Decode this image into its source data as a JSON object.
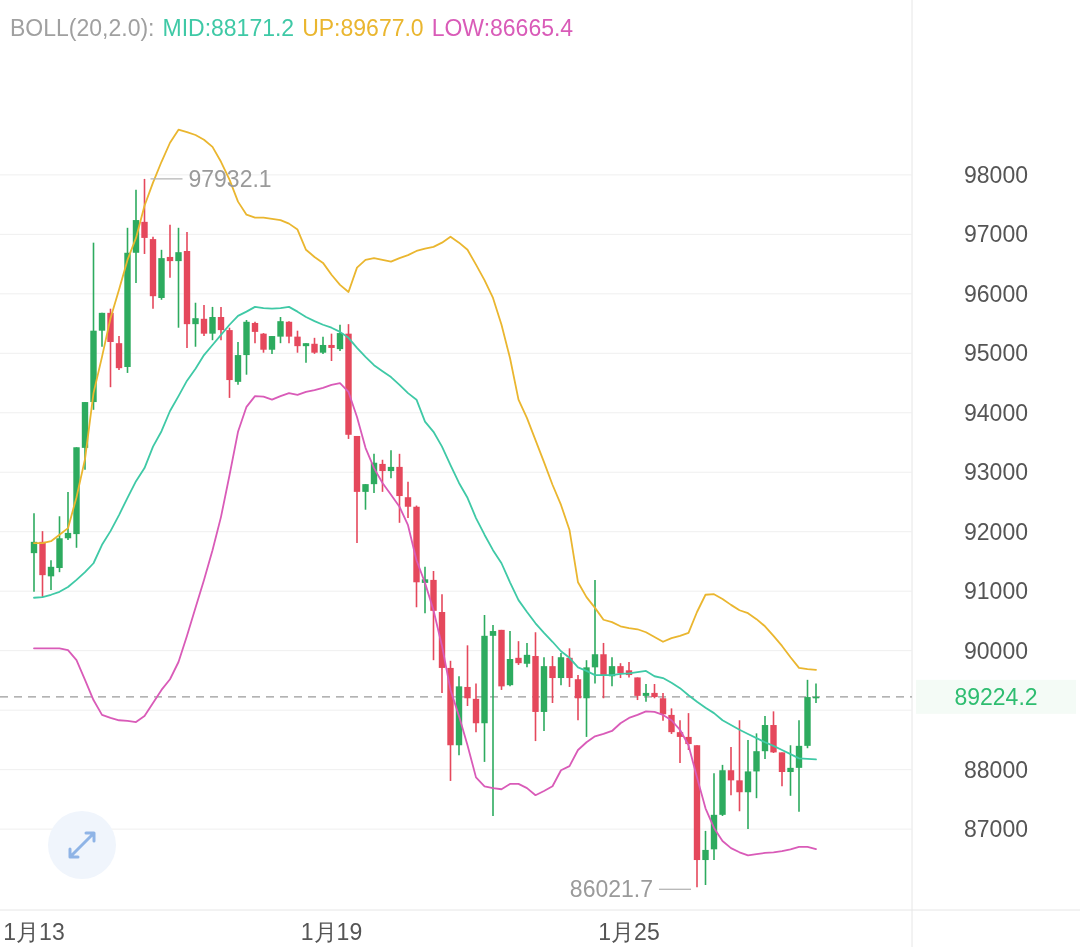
{
  "chart_data": {
    "type": "candlestick",
    "title": "BOLL(20,2.0):",
    "legend": "top",
    "grid": "y",
    "categories": [
      "1月13",
      null,
      null,
      null,
      null,
      null,
      null,
      null,
      null,
      null,
      null,
      null,
      null,
      null,
      null,
      null,
      null,
      null,
      null,
      null,
      null,
      null,
      null,
      null,
      null,
      null,
      null,
      null,
      null,
      null,
      null,
      null,
      null,
      null,
      null,
      "1月19",
      null,
      null,
      null,
      null,
      null,
      null,
      null,
      null,
      null,
      null,
      null,
      null,
      null,
      null,
      null,
      null,
      null,
      null,
      null,
      null,
      null,
      null,
      null,
      null,
      null,
      null,
      null,
      null,
      null,
      null,
      null,
      null,
      null,
      null,
      "1月25",
      null,
      null,
      null,
      null,
      null,
      null,
      null,
      null,
      null,
      null,
      null,
      null,
      null,
      null,
      null,
      null,
      null,
      null,
      null,
      null,
      null,
      null
    ],
    "ohlc": [
      [
        91640,
        92310,
        90990,
        91830
      ],
      [
        91830,
        92010,
        90900,
        91270
      ],
      [
        91250,
        91520,
        91020,
        91410
      ],
      [
        91390,
        92260,
        91320,
        91890
      ],
      [
        91890,
        92670,
        91860,
        91980
      ],
      [
        91960,
        93420,
        91730,
        93420
      ],
      [
        93410,
        94180,
        93040,
        94180
      ],
      [
        94180,
        96860,
        94050,
        95380
      ],
      [
        95380,
        95680,
        95110,
        95680
      ],
      [
        95680,
        95750,
        94430,
        95190
      ],
      [
        95170,
        95290,
        94720,
        94750
      ],
      [
        94770,
        97110,
        94670,
        96690
      ],
      [
        96690,
        97750,
        96180,
        97240
      ],
      [
        97210,
        97932.1,
        96670,
        96940
      ],
      [
        96920,
        96960,
        95750,
        95960
      ],
      [
        95930,
        96740,
        95900,
        96600
      ],
      [
        96620,
        97160,
        96270,
        96550
      ],
      [
        96550,
        97110,
        95430,
        96700
      ],
      [
        96720,
        97040,
        95090,
        95490
      ],
      [
        95490,
        95850,
        95110,
        95590
      ],
      [
        95580,
        95810,
        95290,
        95330
      ],
      [
        95330,
        95780,
        95220,
        95610
      ],
      [
        95610,
        95780,
        95220,
        95390
      ],
      [
        95390,
        95430,
        94250,
        94550
      ],
      [
        94520,
        95190,
        94470,
        94970
      ],
      [
        94970,
        95560,
        94640,
        95530
      ],
      [
        95510,
        95530,
        95170,
        95360
      ],
      [
        95330,
        95340,
        95010,
        95060
      ],
      [
        95060,
        95290,
        94990,
        95290
      ],
      [
        95280,
        95610,
        95170,
        95540
      ],
      [
        95530,
        95540,
        95170,
        95280
      ],
      [
        95280,
        95380,
        95010,
        95120
      ],
      [
        95120,
        95170,
        94840,
        95170
      ],
      [
        95160,
        95260,
        94990,
        95010
      ],
      [
        95010,
        95280,
        94990,
        95140
      ],
      [
        95140,
        95330,
        94870,
        95090
      ],
      [
        95070,
        95480,
        95040,
        95340
      ],
      [
        95330,
        95490,
        93560,
        93630
      ],
      [
        93610,
        93610,
        91810,
        92670
      ],
      [
        92670,
        92800,
        92370,
        92800
      ],
      [
        92800,
        93310,
        92650,
        93160
      ],
      [
        93140,
        93210,
        92670,
        93020
      ],
      [
        93020,
        93370,
        92900,
        93090
      ],
      [
        93090,
        93310,
        92150,
        92600
      ],
      [
        92580,
        92840,
        92230,
        92420
      ],
      [
        92420,
        92440,
        90730,
        91150
      ],
      [
        91140,
        91410,
        90630,
        91200
      ],
      [
        91190,
        91340,
        89840,
        90670
      ],
      [
        90650,
        90950,
        89290,
        89710
      ],
      [
        89710,
        89830,
        87810,
        88410
      ],
      [
        88410,
        89570,
        88240,
        89400
      ],
      [
        89390,
        90090,
        89070,
        89200
      ],
      [
        89190,
        89450,
        88630,
        88780
      ],
      [
        88780,
        90600,
        88130,
        90250
      ],
      [
        90250,
        90430,
        87220,
        90330
      ],
      [
        90350,
        90350,
        89340,
        89400
      ],
      [
        89420,
        90330,
        89400,
        89860
      ],
      [
        89880,
        90160,
        89760,
        89790
      ],
      [
        89780,
        90130,
        89720,
        89930
      ],
      [
        89910,
        90310,
        88480,
        88970
      ],
      [
        88970,
        89890,
        88650,
        89740
      ],
      [
        89740,
        89910,
        89120,
        89540
      ],
      [
        89540,
        89960,
        89420,
        89890
      ],
      [
        89880,
        90040,
        89390,
        89540
      ],
      [
        89520,
        89590,
        88830,
        89200
      ],
      [
        89200,
        89840,
        88550,
        89720
      ],
      [
        89720,
        91190,
        89450,
        89940
      ],
      [
        89940,
        90130,
        89200,
        89590
      ],
      [
        89570,
        89890,
        89400,
        89740
      ],
      [
        89740,
        89790,
        89540,
        89620
      ],
      [
        89670,
        89810,
        89550,
        89590
      ],
      [
        89550,
        89550,
        89170,
        89240
      ],
      [
        89240,
        89440,
        89140,
        89290
      ],
      [
        89290,
        89440,
        89200,
        89220
      ],
      [
        89200,
        89290,
        88820,
        88930
      ],
      [
        88920,
        89030,
        88600,
        88630
      ],
      [
        88630,
        88830,
        88110,
        88550
      ],
      [
        88550,
        88950,
        88330,
        88430
      ],
      [
        88410,
        88410,
        86021.7,
        86480
      ],
      [
        86480,
        86970,
        86060,
        86650
      ],
      [
        86660,
        87940,
        86480,
        87240
      ],
      [
        87240,
        88080,
        87220,
        87990
      ],
      [
        87990,
        88380,
        87570,
        87820
      ],
      [
        87820,
        88830,
        87300,
        87620
      ],
      [
        87620,
        88500,
        87000,
        87970
      ],
      [
        87970,
        88610,
        87520,
        88310
      ],
      [
        88310,
        88900,
        88180,
        88750
      ],
      [
        88750,
        88980,
        88280,
        88290
      ],
      [
        88290,
        88290,
        87720,
        87960
      ],
      [
        87960,
        88410,
        87560,
        88030
      ],
      [
        88030,
        88830,
        87290,
        88400
      ],
      [
        88400,
        89510,
        88360,
        89220
      ],
      [
        89210,
        89450,
        89120,
        89224.2
      ]
    ],
    "series": [
      {
        "name": "MID:88171.2",
        "type": "line",
        "color": "#3fc9a6",
        "values": [
          90890,
          90900,
          90940,
          90990,
          91070,
          91190,
          91320,
          91470,
          91780,
          92010,
          92280,
          92570,
          92850,
          93070,
          93430,
          93690,
          94030,
          94280,
          94540,
          94740,
          94970,
          95140,
          95310,
          95480,
          95630,
          95700,
          95780,
          95760,
          95750,
          95760,
          95780,
          95700,
          95610,
          95540,
          95480,
          95430,
          95360,
          95260,
          95090,
          94940,
          94800,
          94700,
          94600,
          94470,
          94330,
          94220,
          93850,
          93680,
          93430,
          93120,
          92820,
          92570,
          92230,
          91950,
          91690,
          91470,
          91150,
          90850,
          90650,
          90460,
          90300,
          90150,
          89990,
          89880,
          89720,
          89660,
          89590,
          89590,
          89590,
          89610,
          89620,
          89640,
          89660,
          89570,
          89540,
          89460,
          89370,
          89250,
          89140,
          89040,
          88950,
          88830,
          88750,
          88670,
          88600,
          88530,
          88460,
          88400,
          88330,
          88260,
          88190,
          88180,
          88171.2
        ]
      },
      {
        "name": "UP:89677.0",
        "type": "line",
        "color": "#eab62f",
        "values": [
          91810,
          91810,
          91840,
          91950,
          92060,
          92580,
          93220,
          94330,
          94940,
          95590,
          96070,
          96570,
          96940,
          97480,
          97870,
          98220,
          98540,
          98760,
          98720,
          98670,
          98590,
          98470,
          98220,
          97920,
          97550,
          97330,
          97280,
          97280,
          97260,
          97240,
          97180,
          97080,
          96740,
          96620,
          96520,
          96320,
          96150,
          96030,
          96440,
          96570,
          96600,
          96570,
          96540,
          96600,
          96650,
          96720,
          96760,
          96790,
          96860,
          96960,
          96860,
          96740,
          96490,
          96230,
          95930,
          95480,
          94920,
          94220,
          93910,
          93540,
          93170,
          92790,
          92450,
          92030,
          91150,
          90900,
          90720,
          90520,
          90480,
          90410,
          90380,
          90360,
          90310,
          90230,
          90150,
          90210,
          90250,
          90300,
          90650,
          90940,
          90950,
          90870,
          90770,
          90680,
          90630,
          90530,
          90410,
          90250,
          90080,
          89890,
          89710,
          89690,
          89677.0
        ]
      },
      {
        "name": "LOW:86665.4",
        "type": "line",
        "color": "#d95bb8",
        "values": [
          90040,
          90040,
          90040,
          90040,
          90010,
          89840,
          89510,
          89170,
          88920,
          88870,
          88830,
          88820,
          88800,
          88900,
          89120,
          89340,
          89520,
          89810,
          90250,
          90720,
          91190,
          91690,
          92250,
          92950,
          93680,
          94100,
          94280,
          94270,
          94220,
          94280,
          94330,
          94300,
          94350,
          94380,
          94420,
          94470,
          94500,
          94350,
          93930,
          93410,
          93070,
          92820,
          92620,
          92420,
          92110,
          91520,
          91140,
          90680,
          90080,
          89340,
          88900,
          88410,
          87870,
          87720,
          87690,
          87670,
          87760,
          87760,
          87690,
          87570,
          87640,
          87720,
          87990,
          88060,
          88330,
          88460,
          88560,
          88600,
          88650,
          88780,
          88870,
          88920,
          88980,
          88970,
          88920,
          88830,
          88670,
          88410,
          87870,
          87350,
          87020,
          86800,
          86680,
          86610,
          86560,
          86580,
          86600,
          86610,
          86630,
          86660,
          86700,
          86700,
          86665.4
        ]
      }
    ],
    "ref_lines": [
      {
        "axis": "y",
        "value": 89224.2,
        "label": "89224.2",
        "color": "#9a9a9a",
        "line_style": "dashed"
      }
    ],
    "annotations": [
      {
        "text": "97932.1",
        "y": 97932.1
      },
      "86021.7"
    ],
    "ylim": [
      85640,
      100940
    ],
    "yticks": [
      87000,
      88000,
      {
        "value": 89000,
        "label": null
      },
      90000,
      91000,
      92000,
      93000,
      94000,
      95000,
      96000,
      97000,
      98000
    ]
  }
}
